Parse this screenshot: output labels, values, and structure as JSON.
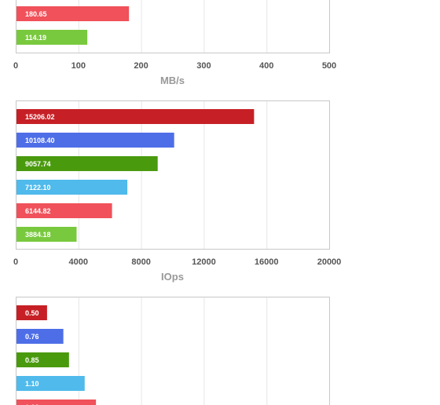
{
  "chart_data": [
    {
      "type": "bar",
      "orientation": "horizontal",
      "xlabel": "MB/s",
      "xlim": [
        0,
        500
      ],
      "ticks": [
        "0",
        "100",
        "200",
        "300",
        "400",
        "500"
      ],
      "grid": true,
      "bars": [
        {
          "value": 180.65,
          "label": "180.65",
          "color": "#f0515a"
        },
        {
          "value": 114.19,
          "label": "114.19",
          "color": "#79c93e"
        }
      ]
    },
    {
      "type": "bar",
      "orientation": "horizontal",
      "xlabel": "IOps",
      "xlim": [
        0,
        20000
      ],
      "ticks": [
        "0",
        "4000",
        "8000",
        "12000",
        "16000",
        "20000"
      ],
      "grid": true,
      "bars": [
        {
          "value": 15206.02,
          "label": "15206.02",
          "color": "#c62026"
        },
        {
          "value": 10108.4,
          "label": "10108.40",
          "color": "#4e6ee8"
        },
        {
          "value": 9057.74,
          "label": "9057.74",
          "color": "#4a9a0e"
        },
        {
          "value": 7122.1,
          "label": "7122.10",
          "color": "#4fbaeb"
        },
        {
          "value": 6144.82,
          "label": "6144.82",
          "color": "#f0515a"
        },
        {
          "value": 3884.18,
          "label": "3884.18",
          "color": "#79c93e"
        }
      ]
    },
    {
      "type": "bar",
      "orientation": "horizontal",
      "xlim": [
        0,
        5
      ],
      "grid": true,
      "bars": [
        {
          "value": 0.5,
          "label": "0.50",
          "color": "#c62026"
        },
        {
          "value": 0.76,
          "label": "0.76",
          "color": "#4e6ee8"
        },
        {
          "value": 0.85,
          "label": "0.85",
          "color": "#4a9a0e"
        },
        {
          "value": 1.1,
          "label": "1.10",
          "color": "#4fbaeb"
        },
        {
          "value": 1.28,
          "label": "1.28",
          "color": "#f0515a"
        }
      ]
    }
  ]
}
